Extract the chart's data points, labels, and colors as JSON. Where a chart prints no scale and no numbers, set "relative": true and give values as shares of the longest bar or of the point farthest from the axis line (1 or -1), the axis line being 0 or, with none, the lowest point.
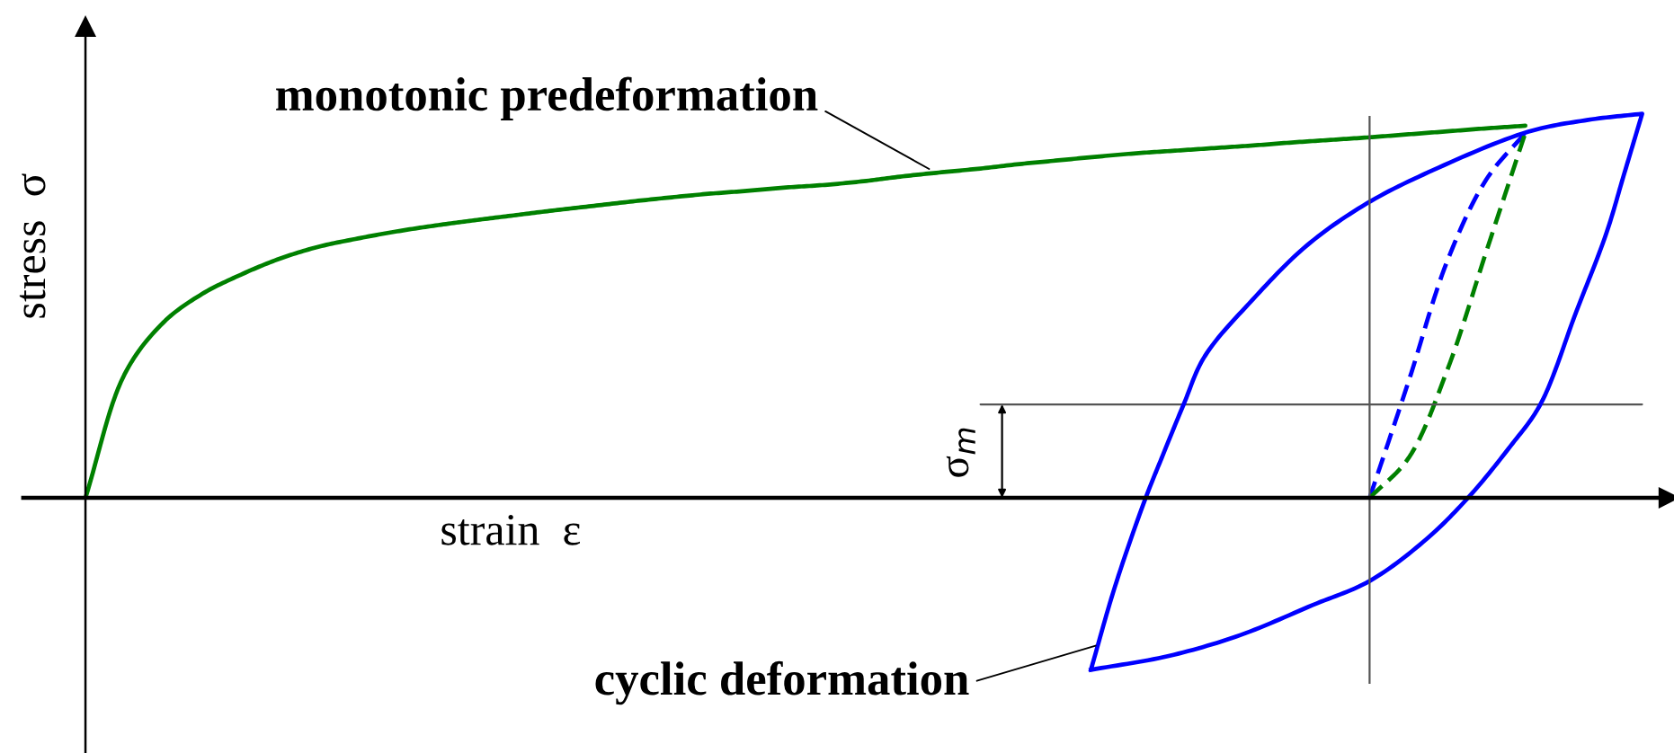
{
  "chart_data": {
    "type": "line",
    "relative": true,
    "xlabel": "strain  ε",
    "ylabel": "stress  σ",
    "categories": [
      null,
      null,
      null,
      null,
      null,
      null,
      null,
      null,
      null,
      null,
      null,
      null,
      null,
      null,
      null,
      null,
      null,
      null,
      null,
      null,
      null,
      null,
      null,
      null,
      null,
      null,
      null,
      null,
      null,
      null,
      null,
      null,
      null,
      null,
      null,
      null,
      null,
      null,
      null,
      null,
      null
    ],
    "series": [
      {
        "color": "#008000",
        "values": [
          0,
          0.331,
          0.471,
          0.548,
          0.6,
          0.643,
          0.675,
          0.697,
          0.716,
          0.732,
          0.746,
          0.759,
          0.772,
          0.784,
          0.796,
          0.807,
          0.817,
          0.825,
          0.834,
          0.841,
          0.851,
          0.864,
          0.875,
          0.885,
          0.897,
          0.907,
          0.917,
          0.926,
          0.933,
          0.94,
          0.947,
          0.955,
          0.962,
          0.969,
          0.977,
          0.985,
          0.993,
          1.0,
          null,
          null,
          null
        ]
      },
      {
        "color": "#0000ff",
        "line_style": "dashed",
        "values": [
          null,
          null,
          null,
          null,
          null,
          null,
          null,
          null,
          null,
          null,
          null,
          null,
          null,
          null,
          null,
          null,
          null,
          null,
          null,
          null,
          null,
          null,
          null,
          null,
          null,
          null,
          null,
          null,
          null,
          null,
          null,
          null,
          null,
          0,
          0.313,
          0.638,
          0.856,
          0.981,
          null,
          null,
          null
        ]
      },
      {
        "color": "#008000",
        "line_style": "dashed",
        "values": [
          null,
          null,
          null,
          null,
          null,
          null,
          null,
          null,
          null,
          null,
          null,
          null,
          null,
          null,
          null,
          null,
          null,
          null,
          null,
          null,
          null,
          null,
          null,
          null,
          null,
          null,
          null,
          null,
          null,
          null,
          null,
          null,
          null,
          0,
          0.107,
          0.345,
          0.663,
          0.981,
          null,
          null,
          null
        ]
      },
      {
        "color": "#555555",
        "values": [
          null,
          null,
          null,
          null,
          null,
          null,
          null,
          null,
          null,
          null,
          null,
          null,
          null,
          null,
          null,
          null,
          null,
          null,
          null,
          null,
          null,
          null,
          null,
          0.251,
          0.251,
          0.251,
          0.251,
          0.251,
          0.251,
          0.251,
          0.251,
          0.251,
          0.251,
          0.251,
          0.251,
          0.251,
          0.251,
          0.251,
          0.251,
          0.251,
          0.251
        ]
      }
    ],
    "annotations": [
      "monotonic predeformation",
      "cyclic deformation",
      "σ$_{m}$"
    ]
  }
}
